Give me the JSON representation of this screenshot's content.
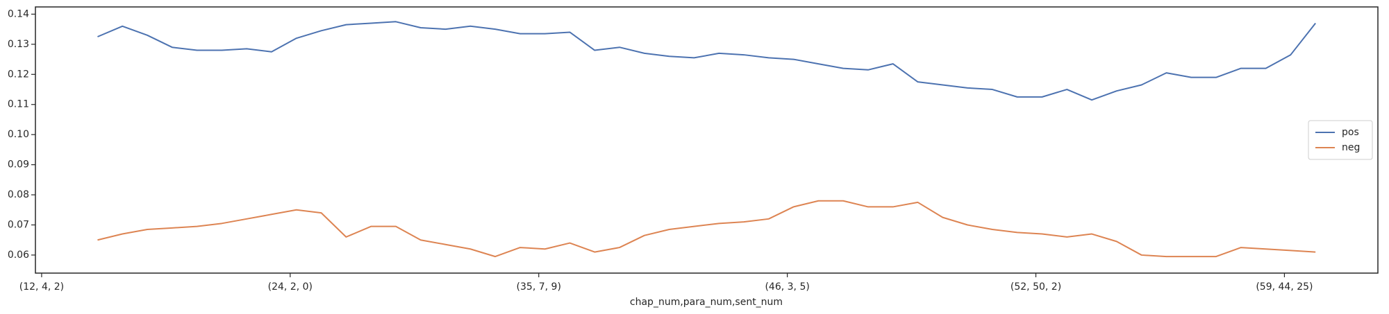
{
  "chart_data": {
    "type": "line",
    "x_label": "chap_num,para_num,sent_num",
    "x": [
      225,
      325,
      425,
      525,
      625,
      725,
      825,
      925,
      1025,
      1125,
      1225,
      1325,
      1425,
      1525,
      1625,
      1725,
      1825,
      1925,
      2025,
      2125,
      2225,
      2325,
      2425,
      2525,
      2625,
      2725,
      2825,
      2925,
      3025,
      3125,
      3225,
      3325,
      3425,
      3525,
      3625,
      3725,
      3825,
      3925,
      4025,
      4125,
      4225,
      4325,
      4425,
      4525,
      4625,
      4725,
      4825,
      4925,
      5025,
      5125
    ],
    "series": [
      {
        "name": "pos",
        "color": "#4c72b0",
        "values": [
          0.1325,
          0.136,
          0.133,
          0.129,
          0.128,
          0.128,
          0.1285,
          0.1275,
          0.132,
          0.1345,
          0.1365,
          0.137,
          0.1375,
          0.1355,
          0.135,
          0.136,
          0.135,
          0.1335,
          0.1335,
          0.134,
          0.128,
          0.129,
          0.127,
          0.126,
          0.1255,
          0.127,
          0.1265,
          0.1255,
          0.125,
          0.1235,
          0.122,
          0.1215,
          0.1235,
          0.1175,
          0.1165,
          0.1155,
          0.115,
          0.1125,
          0.1125,
          0.115,
          0.1115,
          0.1145,
          0.1165,
          0.1205,
          0.119,
          0.119,
          0.122,
          0.122,
          0.1265,
          0.137
        ]
      },
      {
        "name": "neg",
        "color": "#dd8452",
        "values": [
          0.065,
          0.067,
          0.0685,
          0.069,
          0.0695,
          0.0705,
          0.072,
          0.0735,
          0.075,
          0.074,
          0.066,
          0.0695,
          0.0695,
          0.065,
          0.0635,
          0.062,
          0.0595,
          0.0625,
          0.062,
          0.064,
          0.061,
          0.0625,
          0.0665,
          0.0685,
          0.0695,
          0.0705,
          0.071,
          0.072,
          0.076,
          0.078,
          0.078,
          0.076,
          0.076,
          0.0775,
          0.0725,
          0.07,
          0.0685,
          0.0675,
          0.067,
          0.066,
          0.067,
          0.0645,
          0.06,
          0.0595,
          0.0595,
          0.0595,
          0.0625,
          0.062,
          0.0615,
          0.061
        ]
      }
    ],
    "xlim": [
      -25,
      5376
    ],
    "xticks": [
      {
        "value": 0,
        "label": "(12, 4, 2)"
      },
      {
        "value": 1000,
        "label": "(24, 2, 0)"
      },
      {
        "value": 2000,
        "label": "(35, 7, 9)"
      },
      {
        "value": 3000,
        "label": "(46, 3, 5)"
      },
      {
        "value": 4000,
        "label": "(52, 50, 2)"
      },
      {
        "value": 5000,
        "label": "(59, 44, 25)"
      }
    ],
    "ylim": [
      0.054,
      0.1424
    ],
    "yticks": [
      0.06,
      0.07,
      0.08,
      0.09,
      {
        "value": 0.1,
        "label": "0.10"
      },
      0.11,
      0.12,
      0.13,
      0.14
    ],
    "legend": "center right"
  }
}
